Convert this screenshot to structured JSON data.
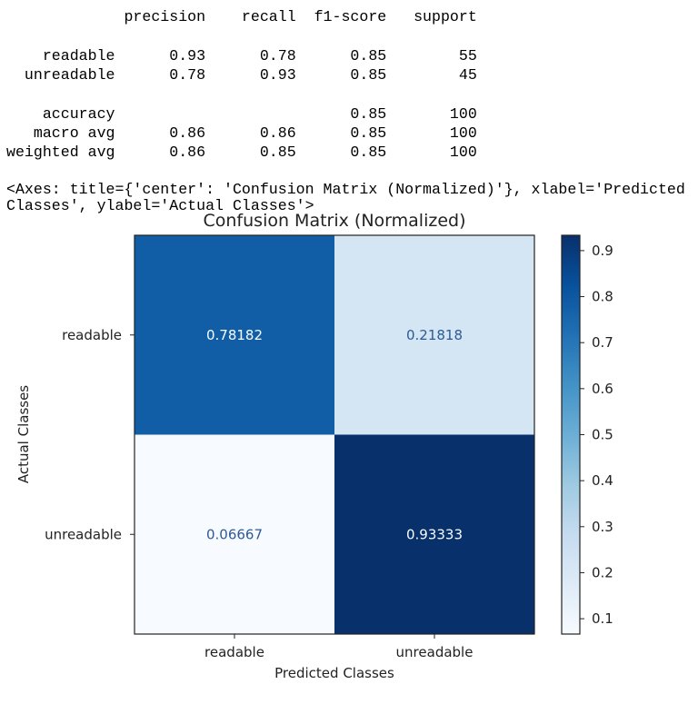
{
  "report": {
    "header": [
      "precision",
      "recall",
      "f1-score",
      "support"
    ],
    "rows": [
      {
        "label": "readable",
        "values": [
          "0.93",
          "0.78",
          "0.85",
          "55"
        ]
      },
      {
        "label": "unreadable",
        "values": [
          "0.78",
          "0.93",
          "0.85",
          "45"
        ]
      },
      {
        "label": "",
        "values": []
      },
      {
        "label": "accuracy",
        "values": [
          "",
          "",
          "0.85",
          "100"
        ]
      },
      {
        "label": "macro avg",
        "values": [
          "0.86",
          "0.86",
          "0.85",
          "100"
        ]
      },
      {
        "label": "weighted avg",
        "values": [
          "0.86",
          "0.85",
          "0.85",
          "100"
        ]
      }
    ],
    "axes_repr": "<Axes: title={'center': 'Confusion Matrix (Normalized)'}, xlabel='Predicted Classes', ylabel='Actual Classes'>"
  },
  "chart_data": {
    "type": "heatmap",
    "title": "Confusion Matrix (Normalized)",
    "xlabel": "Predicted Classes",
    "ylabel": "Actual Classes",
    "x_categories": [
      "readable",
      "unreadable"
    ],
    "y_categories": [
      "readable",
      "unreadable"
    ],
    "values": [
      [
        0.78182,
        0.21818
      ],
      [
        0.06667,
        0.93333
      ]
    ],
    "value_labels": [
      [
        "0.78182",
        "0.21818"
      ],
      [
        "0.06667",
        "0.93333"
      ]
    ],
    "colormap": "Blues",
    "colorbar": {
      "range": [
        0.06667,
        0.93333
      ],
      "ticks": [
        0.1,
        0.2,
        0.3,
        0.4,
        0.5,
        0.6,
        0.7,
        0.8,
        0.9
      ],
      "tick_labels": [
        "0.1",
        "0.2",
        "0.3",
        "0.4",
        "0.5",
        "0.6",
        "0.7",
        "0.8",
        "0.9"
      ]
    }
  }
}
